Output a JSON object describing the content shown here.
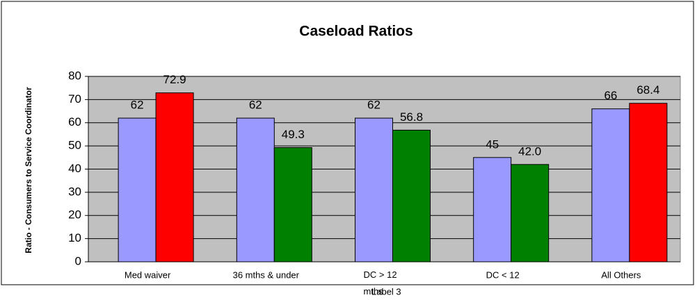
{
  "chart_data": {
    "type": "bar",
    "title": "Caseload Ratios",
    "y_label": "Ratio - Consumers to Service Coordinator",
    "categories": [
      "Med waiver",
      "36 mths & under",
      "DC > 12 mths",
      "DC < 12",
      "All Others"
    ],
    "annotations": [
      "Label 3"
    ],
    "series": [
      {
        "color": "#9999ff",
        "values": [
          62,
          62,
          62,
          45,
          66
        ]
      },
      {
        "colors": [
          "#ff0000",
          "#008000",
          "#008000",
          "#008000",
          "#ff0000"
        ],
        "values": [
          72.9,
          49.3,
          56.8,
          42.0,
          68.4
        ],
        "value_labels": [
          "72.9",
          "49.3",
          "56.8",
          "42.0",
          "68.4"
        ]
      }
    ],
    "ylim": [
      0,
      80
    ],
    "yticks": [
      0,
      10,
      20,
      30,
      40,
      50,
      60,
      70,
      80
    ],
    "grid": true,
    "plot_background": "#c0c0c0"
  }
}
